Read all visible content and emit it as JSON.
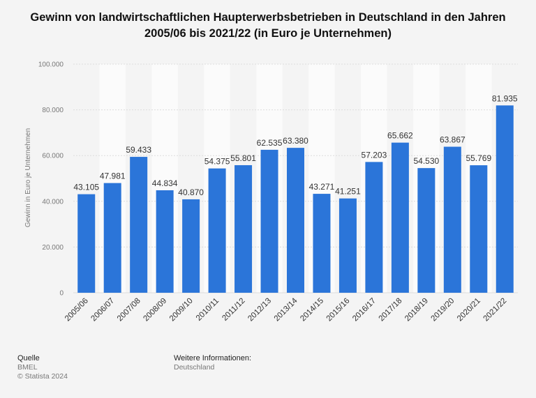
{
  "chart_data": {
    "type": "bar",
    "title": "Gewinn von landwirtschaftlichen Haupterwerbsbetrieben in Deutschland in den Jahren 2005/06 bis 2021/22 (in Euro je Unternehmen)",
    "xlabel": "",
    "ylabel": "Gewinn in Euro je Unternehmen",
    "categories": [
      "2005/06",
      "2006/07",
      "2007/08",
      "2008/09",
      "2009/10",
      "2010/11",
      "2011/12",
      "2012/13",
      "2013/14",
      "2014/15",
      "2015/16",
      "2016/17",
      "2017/18",
      "2018/19",
      "2019/20",
      "2020/21",
      "2021/22"
    ],
    "values": [
      43105,
      47981,
      59433,
      44834,
      40870,
      54375,
      55801,
      62535,
      63380,
      43271,
      41251,
      57203,
      65662,
      54530,
      63867,
      55769,
      81935
    ],
    "value_labels": [
      "43.105",
      "47.981",
      "59.433",
      "44.834",
      "40.870",
      "54.375",
      "55.801",
      "62.535",
      "63.380",
      "43.271",
      "41.251",
      "57.203",
      "65.662",
      "54.530",
      "63.867",
      "55.769",
      "81.935"
    ],
    "ylim": [
      0,
      100000
    ],
    "yticks": [
      0,
      20000,
      40000,
      60000,
      80000,
      100000
    ],
    "ytick_labels": [
      "0",
      "20.000",
      "40.000",
      "60.000",
      "80.000",
      "100.000"
    ],
    "bar_color": "#2b75d9",
    "grid": true
  },
  "footer": {
    "source_heading": "Quelle",
    "source_name": "BMEL",
    "copyright": "© Statista 2024",
    "info_heading": "Weitere Informationen:",
    "info_text": "Deutschland"
  }
}
